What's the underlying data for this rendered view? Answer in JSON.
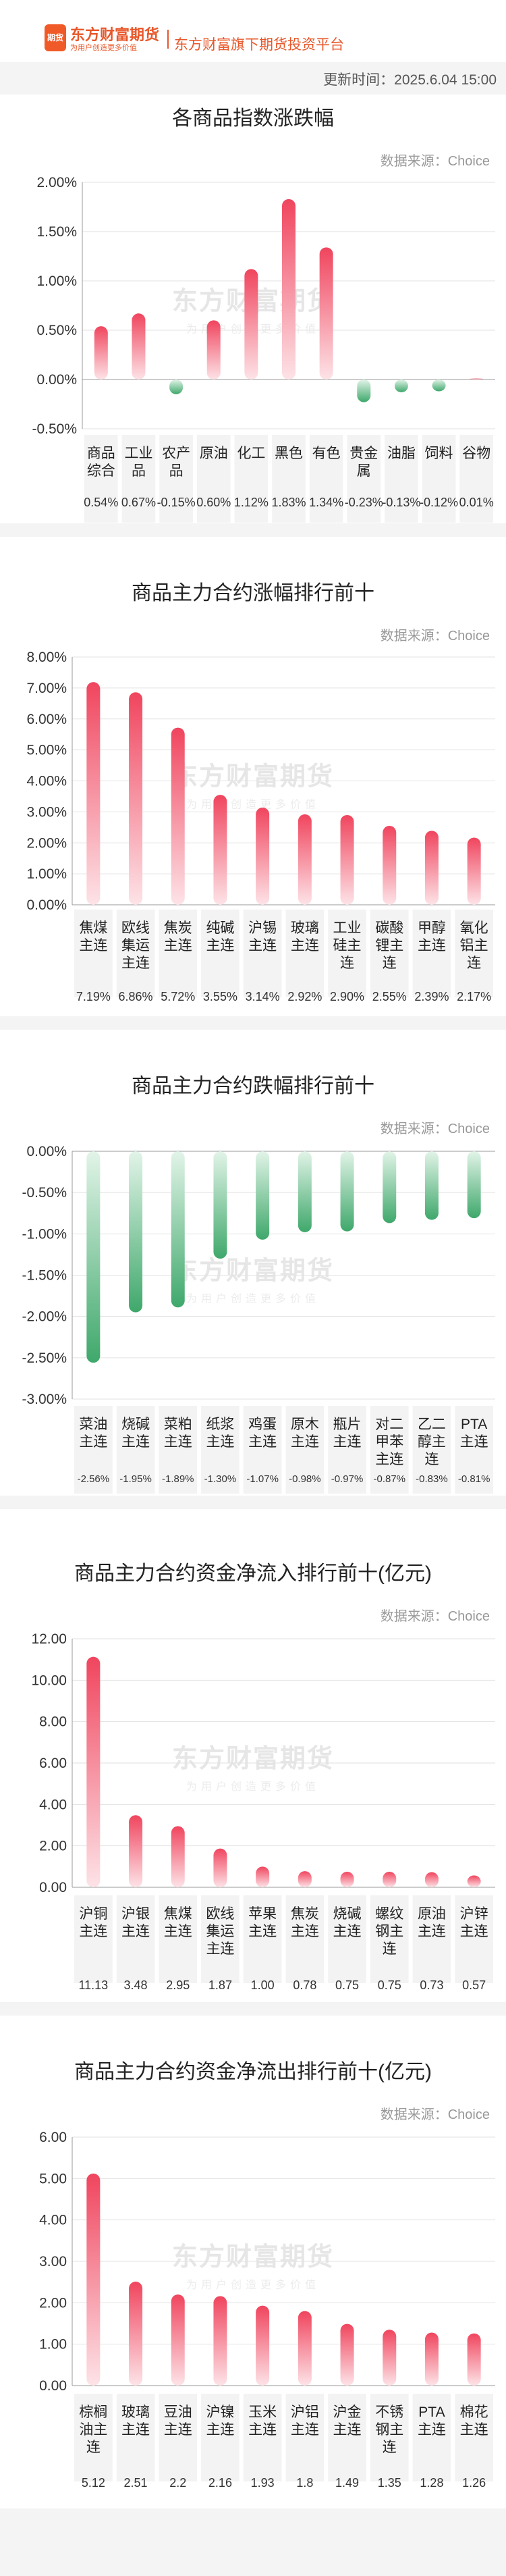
{
  "header": {
    "logo_badge": "期货",
    "logo_name": "东方财富期货",
    "logo_slogan": "为用户创造更多价值",
    "platform": "东方财富旗下期货投资平台",
    "update_time": "更新时间：2025.6.04 15:00"
  },
  "watermark": {
    "main": "东方财富期货",
    "sub": "为用户创造更多价值"
  },
  "colors": {
    "up": "#f0455e",
    "down": "#3fa86b"
  },
  "sections": [
    {
      "id": "index-change",
      "title": "各商品指数涨跌幅",
      "source": "数据来源：Choice",
      "chart_data": {
        "type": "bar",
        "categories": [
          "商品综合",
          "工业品",
          "农产品",
          "原油",
          "化工",
          "黑色",
          "有色",
          "贵金属",
          "油脂",
          "饲料",
          "谷物"
        ],
        "values": [
          0.54,
          0.67,
          -0.15,
          0.6,
          1.12,
          1.83,
          1.34,
          -0.23,
          -0.13,
          -0.12,
          0.01
        ],
        "value_labels": [
          "0.54%",
          "0.67%",
          "-0.15%",
          "0.60%",
          "1.12%",
          "1.83%",
          "1.34%",
          "-0.23%",
          "-0.13%",
          "-0.12%",
          "0.01%"
        ],
        "ylim": [
          -0.5,
          2.0
        ],
        "yticks": [
          -0.5,
          0,
          0.5,
          1.0,
          1.5,
          2.0
        ],
        "ytick_labels": [
          "-0.50%",
          "0.00%",
          "0.50%",
          "1.00%",
          "1.50%",
          "2.00%"
        ],
        "grid": true
      }
    },
    {
      "id": "top-gainers",
      "title": "商品主力合约涨幅排行前十",
      "source": "数据来源：Choice",
      "chart_data": {
        "type": "bar",
        "categories": [
          "焦煤主连",
          "欧线集运主连",
          "焦炭主连",
          "纯碱主连",
          "沪锡主连",
          "玻璃主连",
          "工业硅主连",
          "碳酸锂主连",
          "甲醇主连",
          "氧化铝主连"
        ],
        "values": [
          7.19,
          6.86,
          5.72,
          3.55,
          3.14,
          2.92,
          2.9,
          2.55,
          2.39,
          2.17
        ],
        "value_labels": [
          "7.19%",
          "6.86%",
          "5.72%",
          "3.55%",
          "3.14%",
          "2.92%",
          "2.90%",
          "2.55%",
          "2.39%",
          "2.17%"
        ],
        "ylim": [
          0,
          8
        ],
        "yticks": [
          0,
          1,
          2,
          3,
          4,
          5,
          6,
          7,
          8
        ],
        "ytick_labels": [
          "0.00%",
          "1.00%",
          "2.00%",
          "3.00%",
          "4.00%",
          "5.00%",
          "6.00%",
          "7.00%",
          "8.00%"
        ],
        "grid": true
      }
    },
    {
      "id": "top-losers",
      "title": "商品主力合约跌幅排行前十",
      "source": "数据来源：Choice",
      "chart_data": {
        "type": "bar",
        "categories": [
          "菜油主连",
          "烧碱主连",
          "菜粕主连",
          "纸浆主连",
          "鸡蛋主连",
          "原木主连",
          "瓶片主连",
          "对二甲苯主连",
          "乙二醇主连",
          "PTA主连"
        ],
        "values": [
          -2.56,
          -1.95,
          -1.89,
          -1.3,
          -1.07,
          -0.98,
          -0.97,
          -0.87,
          -0.83,
          -0.81
        ],
        "value_labels": [
          "-2.56%",
          "-1.95%",
          "-1.89%",
          "-1.30%",
          "-1.07%",
          "-0.98%",
          "-0.97%",
          "-0.87%",
          "-0.83%",
          "-0.81%"
        ],
        "ylim": [
          -3,
          0
        ],
        "yticks": [
          -3,
          -2.5,
          -2,
          -1.5,
          -1,
          -0.5,
          0
        ],
        "ytick_labels": [
          "-3.00%",
          "-2.50%",
          "-2.00%",
          "-1.50%",
          "-1.00%",
          "-0.50%",
          "0.00%"
        ],
        "grid": true
      }
    },
    {
      "id": "top-inflows",
      "title": "商品主力合约资金净流入排行前十(亿元)",
      "source": "数据来源：Choice",
      "chart_data": {
        "type": "bar",
        "categories": [
          "沪铜主连",
          "沪银主连",
          "焦煤主连",
          "欧线集运主连",
          "苹果主连",
          "焦炭主连",
          "烧碱主连",
          "螺纹钢主连",
          "原油主连",
          "沪锌主连"
        ],
        "values": [
          11.13,
          3.48,
          2.95,
          1.87,
          1.0,
          0.78,
          0.75,
          0.75,
          0.73,
          0.57
        ],
        "value_labels": [
          "11.13",
          "3.48",
          "2.95",
          "1.87",
          "1.00",
          "0.78",
          "0.75",
          "0.75",
          "0.73",
          "0.57"
        ],
        "ylim": [
          0,
          12
        ],
        "yticks": [
          0,
          2,
          4,
          6,
          8,
          10,
          12
        ],
        "ytick_labels": [
          "0.00",
          "2.00",
          "4.00",
          "6.00",
          "8.00",
          "10.00",
          "12.00"
        ],
        "grid": true
      }
    },
    {
      "id": "top-outflows",
      "title": "商品主力合约资金净流出排行前十(亿元)",
      "source": "数据来源：Choice",
      "chart_data": {
        "type": "bar",
        "categories": [
          "棕榈油主连",
          "玻璃主连",
          "豆油主连",
          "沪镍主连",
          "玉米主连",
          "沪铝主连",
          "沪金主连",
          "不锈钢主连",
          "PTA主连",
          "棉花主连"
        ],
        "values": [
          5.12,
          2.51,
          2.2,
          2.16,
          1.93,
          1.8,
          1.49,
          1.35,
          1.28,
          1.26
        ],
        "value_labels": [
          "5.12",
          "2.51",
          "2.2",
          "2.16",
          "1.93",
          "1.8",
          "1.49",
          "1.35",
          "1.28",
          "1.26"
        ],
        "ylim": [
          0,
          6
        ],
        "yticks": [
          0,
          1,
          2,
          3,
          4,
          5,
          6
        ],
        "ytick_labels": [
          "0.00",
          "1.00",
          "2.00",
          "3.00",
          "4.00",
          "5.00",
          "6.00"
        ],
        "grid": true
      }
    }
  ]
}
